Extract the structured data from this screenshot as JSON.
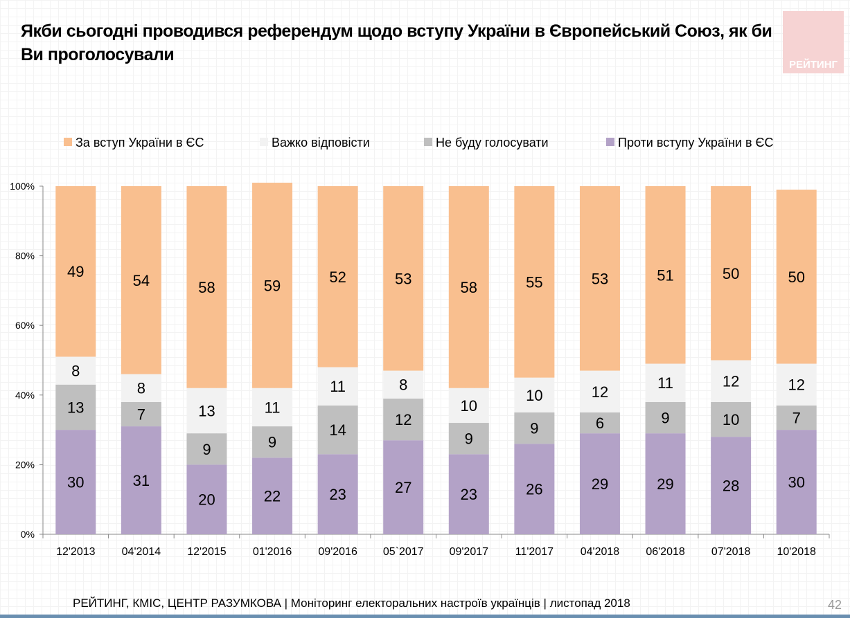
{
  "title": "Якби сьогодні проводився референдум щодо вступу України в Європейський Союз, як би Ви проголосували",
  "logo_text": "РЕЙТИНГ",
  "footer": "РЕЙТИНГ, КМІС, ЦЕНТР РАЗУМКОВА |  Моніторинг електоральних настроїв українців | листопад 2018",
  "page_number": "42",
  "chart_data": {
    "type": "bar",
    "stacked": true,
    "percent_stacked": true,
    "categories": [
      "12'2013",
      "04'2014",
      "12'2015",
      "01'2016",
      "09'2016",
      "05`2017",
      "09'2017",
      "11'2017",
      "04'2018",
      "06'2018",
      "07'2018",
      "10'2018"
    ],
    "yticks": [
      "0%",
      "20%",
      "40%",
      "60%",
      "80%",
      "100%"
    ],
    "ylim": [
      0,
      100
    ],
    "legend_position": "top",
    "series": [
      {
        "name": "Проти вступу України в ЄС",
        "color": "#B3A2C7",
        "values": [
          30,
          31,
          20,
          22,
          23,
          27,
          23,
          26,
          29,
          29,
          28,
          30
        ]
      },
      {
        "name": "Не буду голосувати",
        "color": "#BFBFBF",
        "values": [
          13,
          7,
          9,
          9,
          14,
          12,
          9,
          9,
          6,
          9,
          10,
          7
        ]
      },
      {
        "name": "Важко відповісти",
        "color": "#F2F2F2",
        "values": [
          8,
          8,
          13,
          11,
          11,
          8,
          10,
          10,
          12,
          11,
          12,
          12
        ]
      },
      {
        "name": "За вступ України в ЄС",
        "color": "#F9BF8F",
        "values": [
          49,
          54,
          58,
          59,
          52,
          53,
          58,
          55,
          53,
          51,
          50,
          50
        ]
      }
    ],
    "legend_order": [
      3,
      2,
      1,
      0
    ]
  }
}
